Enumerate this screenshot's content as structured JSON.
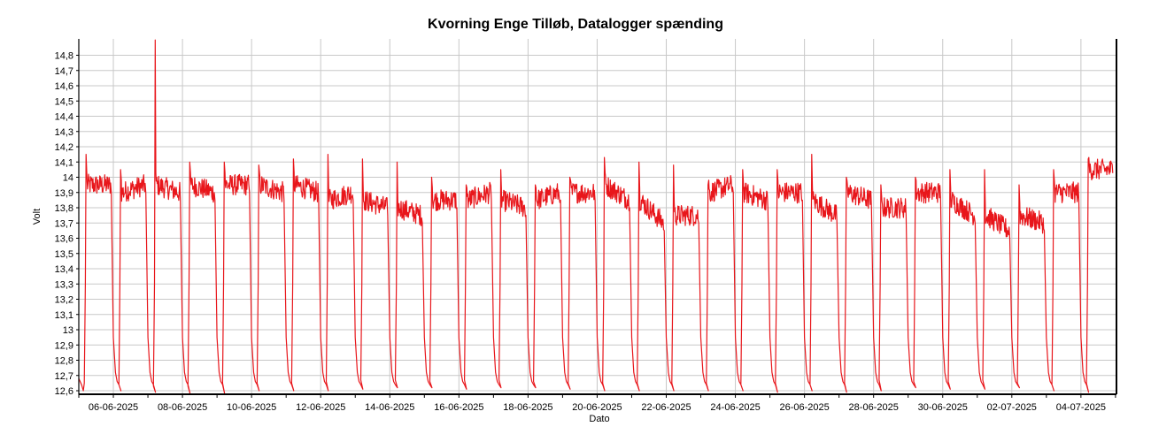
{
  "chart_data": {
    "type": "line",
    "title": "Kvorning Enge Tilløb, Datalogger spænding",
    "xlabel": "Dato",
    "ylabel": "Volt",
    "ylim": [
      12.6,
      14.9
    ],
    "y_ticks": [
      "12,6",
      "12,7",
      "12,8",
      "12,9",
      "13",
      "13,1",
      "13,2",
      "13,3",
      "13,4",
      "13,5",
      "13,6",
      "13,7",
      "13,8",
      "13,9",
      "14",
      "14,1",
      "14,2",
      "14,3",
      "14,4",
      "14,5",
      "14,6",
      "14,7",
      "14,8"
    ],
    "x_ticks": [
      "06-06-2025",
      "08-06-2025",
      "10-06-2025",
      "12-06-2025",
      "14-06-2025",
      "16-06-2025",
      "18-06-2025",
      "20-06-2025",
      "22-06-2025",
      "24-06-2025",
      "26-06-2025",
      "28-06-2025",
      "30-06-2025",
      "02-07-2025",
      "04-07-2025"
    ],
    "grid": true,
    "colors": {
      "line": "#e8161b",
      "grid": "#c8c8c8",
      "axis": "#000000"
    },
    "series": [
      {
        "days": [
          {
            "date": "05-06-2025",
            "peak": 14.15,
            "day": 13.95,
            "end": 13.95,
            "min": 12.6
          },
          {
            "date": "06-06-2025",
            "peak": 14.05,
            "day": 13.9,
            "end": 13.95,
            "min": 12.59
          },
          {
            "date": "07-06-2025",
            "peak": 14.9,
            "day": 13.95,
            "end": 13.9,
            "min": 12.58
          },
          {
            "date": "08-06-2025",
            "peak": 14.1,
            "day": 13.95,
            "end": 13.9,
            "min": 12.58
          },
          {
            "date": "09-06-2025",
            "peak": 14.1,
            "day": 13.95,
            "end": 13.95,
            "min": 12.6
          },
          {
            "date": "10-06-2025",
            "peak": 14.08,
            "day": 13.95,
            "end": 13.9,
            "min": 12.6
          },
          {
            "date": "11-06-2025",
            "peak": 14.12,
            "day": 13.95,
            "end": 13.9,
            "min": 12.6
          },
          {
            "date": "12-06-2025",
            "peak": 14.15,
            "day": 13.85,
            "end": 13.9,
            "min": 12.61
          },
          {
            "date": "13-06-2025",
            "peak": 14.12,
            "day": 13.85,
            "end": 13.8,
            "min": 12.62
          },
          {
            "date": "14-06-2025",
            "peak": 14.1,
            "day": 13.8,
            "end": 13.75,
            "min": 12.62
          },
          {
            "date": "15-06-2025",
            "peak": 14.0,
            "day": 13.85,
            "end": 13.85,
            "min": 12.61
          },
          {
            "date": "16-06-2025",
            "peak": 13.95,
            "day": 13.85,
            "end": 13.9,
            "min": 12.62
          },
          {
            "date": "17-06-2025",
            "peak": 14.05,
            "day": 13.85,
            "end": 13.8,
            "min": 12.62
          },
          {
            "date": "18-06-2025",
            "peak": 13.95,
            "day": 13.85,
            "end": 13.9,
            "min": 12.61
          },
          {
            "date": "19-06-2025",
            "peak": 14.0,
            "day": 13.9,
            "end": 13.9,
            "min": 12.6
          },
          {
            "date": "20-06-2025",
            "peak": 14.13,
            "day": 13.95,
            "end": 13.85,
            "min": 12.6
          },
          {
            "date": "21-06-2025",
            "peak": 14.1,
            "day": 13.85,
            "end": 13.7,
            "min": 12.6
          },
          {
            "date": "22-06-2025",
            "peak": 14.08,
            "day": 13.75,
            "end": 13.75,
            "min": 12.6
          },
          {
            "date": "23-06-2025",
            "peak": 13.95,
            "day": 13.9,
            "end": 13.95,
            "min": 12.6
          },
          {
            "date": "24-06-2025",
            "peak": 14.05,
            "day": 13.9,
            "end": 13.85,
            "min": 12.59
          },
          {
            "date": "25-06-2025",
            "peak": 14.05,
            "day": 13.9,
            "end": 13.9,
            "min": 12.6
          },
          {
            "date": "26-06-2025",
            "peak": 14.15,
            "day": 13.85,
            "end": 13.75,
            "min": 12.59
          },
          {
            "date": "27-06-2025",
            "peak": 14.0,
            "day": 13.9,
            "end": 13.85,
            "min": 12.6
          },
          {
            "date": "28-06-2025",
            "peak": 13.95,
            "day": 13.8,
            "end": 13.8,
            "min": 12.62
          },
          {
            "date": "29-06-2025",
            "peak": 14.0,
            "day": 13.9,
            "end": 13.9,
            "min": 12.61
          },
          {
            "date": "30-06-2025",
            "peak": 14.05,
            "day": 13.85,
            "end": 13.75,
            "min": 12.61
          },
          {
            "date": "01-07-2025",
            "peak": 14.05,
            "day": 13.75,
            "end": 13.65,
            "min": 12.62
          },
          {
            "date": "02-07-2025",
            "peak": 13.95,
            "day": 13.75,
            "end": 13.7,
            "min": 12.6
          },
          {
            "date": "03-07-2025",
            "peak": 14.05,
            "day": 13.9,
            "end": 13.9,
            "min": 12.59
          },
          {
            "date": "04-07-2025",
            "peak": 14.12,
            "day": 14.05,
            "end": 14.05,
            "min": null
          }
        ]
      }
    ]
  }
}
